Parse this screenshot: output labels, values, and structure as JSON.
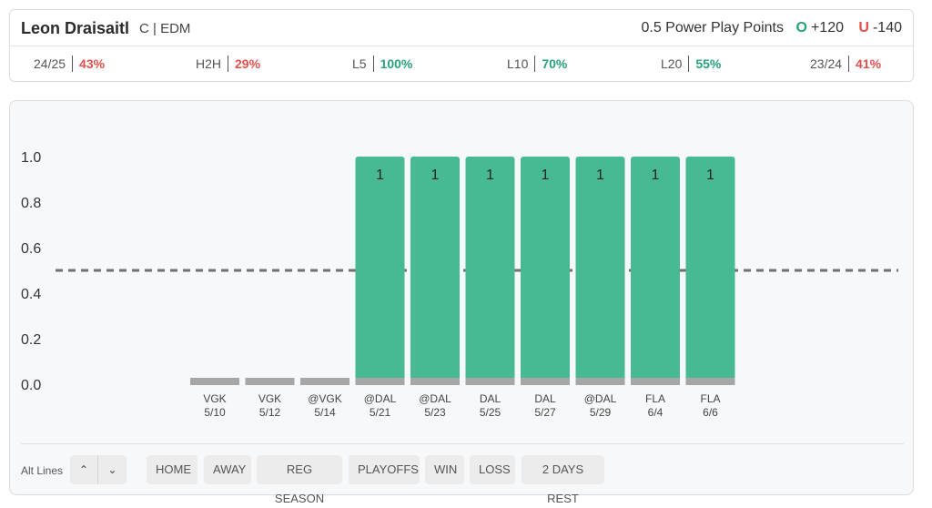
{
  "header": {
    "player_name": "Leon Draisaitl",
    "player_meta": "C | EDM",
    "market": "0.5 Power Play Points",
    "over": {
      "symbol": "O",
      "odds": "+120"
    },
    "under": {
      "symbol": "U",
      "odds": "-140"
    }
  },
  "stats": [
    {
      "label": "24/25",
      "value": "43%",
      "color": "red"
    },
    {
      "label": "H2H",
      "value": "29%",
      "color": "red"
    },
    {
      "label": "L5",
      "value": "100%",
      "color": "green"
    },
    {
      "label": "L10",
      "value": "70%",
      "color": "green"
    },
    {
      "label": "L20",
      "value": "55%",
      "color": "green"
    },
    {
      "label": "23/24",
      "value": "41%",
      "color": "red"
    }
  ],
  "chart_data": {
    "type": "bar",
    "categories": [
      {
        "opponent": "VGK",
        "date": "5/10"
      },
      {
        "opponent": "VGK",
        "date": "5/12"
      },
      {
        "opponent": "@VGK",
        "date": "5/14"
      },
      {
        "opponent": "@DAL",
        "date": "5/21"
      },
      {
        "opponent": "@DAL",
        "date": "5/23"
      },
      {
        "opponent": "DAL",
        "date": "5/25"
      },
      {
        "opponent": "DAL",
        "date": "5/27"
      },
      {
        "opponent": "@DAL",
        "date": "5/29"
      },
      {
        "opponent": "FLA",
        "date": "6/4"
      },
      {
        "opponent": "FLA",
        "date": "6/6"
      }
    ],
    "values": [
      0,
      0,
      0,
      1,
      1,
      1,
      1,
      1,
      1,
      1
    ],
    "line": 0.5,
    "ylim": [
      0,
      1.0
    ],
    "yticks": [
      "1.0",
      "0.8",
      "0.6",
      "0.4",
      "0.2",
      "0.0"
    ],
    "colors": {
      "hit": "#47ba94",
      "zero": "#a6a6a6",
      "line": "#707070"
    }
  },
  "filters": {
    "alt_lines_label": "Alt Lines",
    "buttons": [
      "HOME",
      "AWAY",
      "REG SEASON",
      "PLAYOFFS",
      "WIN",
      "LOSS",
      "2 DAYS REST"
    ]
  }
}
